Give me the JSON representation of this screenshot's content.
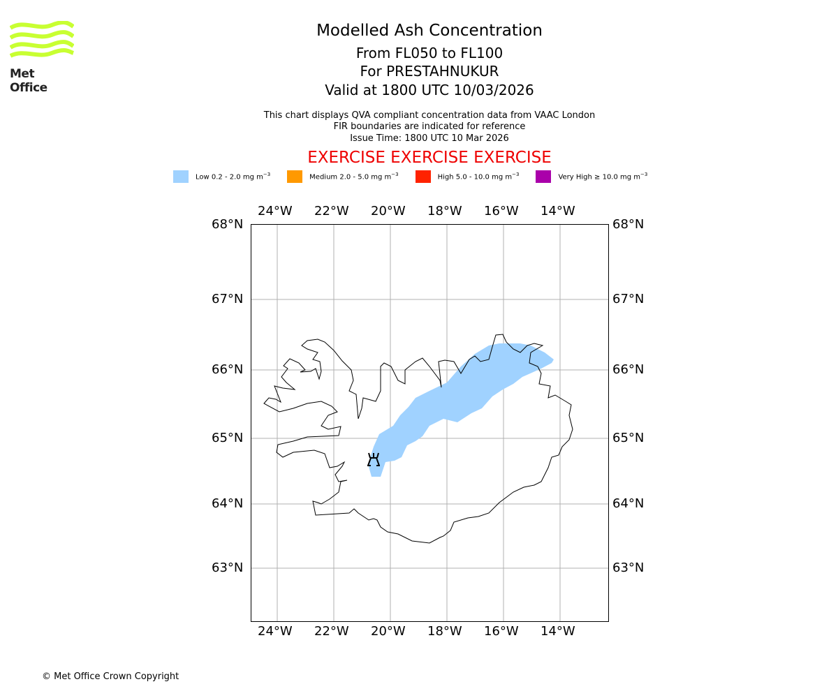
{
  "logo": {
    "text": "Met Office",
    "color": "#c8ff32"
  },
  "title": "Modelled Ash Concentration",
  "subtitle_levels": "From FL050 to FL100",
  "subtitle_volcano": "For PRESTAHNUKUR",
  "subtitle_valid": "Valid at 1800 UTC 10/03/2026",
  "notes": [
    "This chart displays QVA compliant concentration data from VAAC London",
    "FIR boundaries are indicated for reference",
    "Issue Time: 1800 UTC 10 Mar 2026"
  ],
  "exercise_banner": "EXERCISE EXERCISE EXERCISE",
  "legend": [
    {
      "label": "Low 0.2 - 2.0 mg m",
      "sup": "−3",
      "color": "#a0d2ff"
    },
    {
      "label": "Medium 2.0 - 5.0 mg m",
      "sup": "−3",
      "color": "#ff9900"
    },
    {
      "label": "High 5.0 - 10.0 mg m",
      "sup": "−3",
      "color": "#ff2200"
    },
    {
      "label": "Very High  ≥  10.0 mg m",
      "sup": "−3",
      "color": "#aa00aa"
    }
  ],
  "chart_data": {
    "type": "map",
    "lon_ticks": [
      "24°W",
      "22°W",
      "20°W",
      "18°W",
      "16°W",
      "14°W"
    ],
    "lat_ticks": [
      "68°N",
      "67°N",
      "66°N",
      "65°N",
      "64°N",
      "63°N"
    ],
    "extent": {
      "lon": [
        -25,
        -12.4
      ],
      "lat": [
        62.2,
        68
      ]
    },
    "volcano": {
      "name": "PRESTAHNUKUR",
      "lon": -20.6,
      "lat": 64.6,
      "icon": "volcano-icon"
    },
    "ash_regions": [
      {
        "level": "Low",
        "color": "#a0d2ff"
      }
    ]
  },
  "copyright": "© Met Office Crown Copyright"
}
